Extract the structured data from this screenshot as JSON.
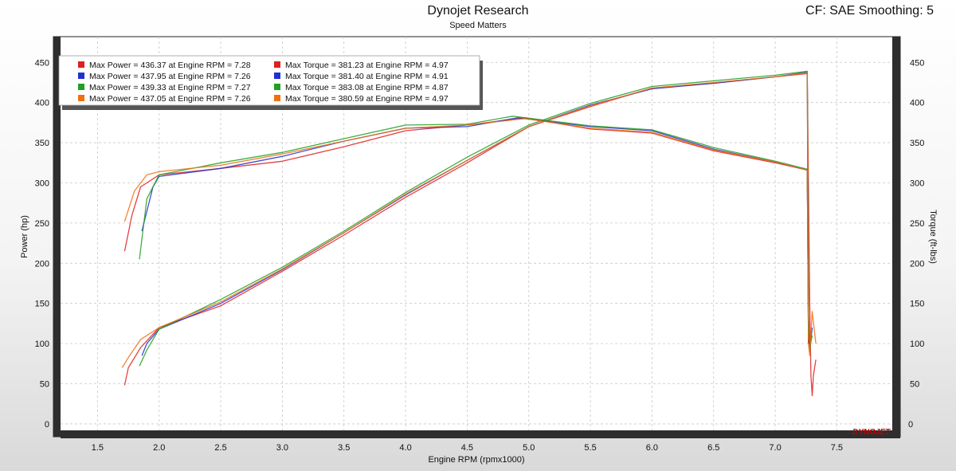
{
  "header": {
    "title": "Dynojet Research",
    "subtitle": "Speed Matters",
    "cf_label": "CF: SAE Smoothing: 5"
  },
  "logo_text": "DYNOJET",
  "chart_data": {
    "type": "line",
    "xlabel": "Engine RPM (rpmx1000)",
    "ylabel_left": "Power (hp)",
    "ylabel_right": "Torque (ft-lbs)",
    "xlim": [
      1.2,
      7.95
    ],
    "ylim": [
      -8,
      482
    ],
    "x_ticks": [
      "1.5",
      "2.0",
      "2.5",
      "3.0",
      "3.5",
      "4.0",
      "4.5",
      "5.0",
      "5.5",
      "6.0",
      "6.5",
      "7.0",
      "7.5"
    ],
    "y_ticks": [
      "0",
      "50",
      "100",
      "150",
      "200",
      "250",
      "300",
      "350",
      "400",
      "450"
    ],
    "grid": true,
    "legend_position": "top-left",
    "legend": [
      {
        "color": "#e02020",
        "power_text": "Max Power = 436.37 at Engine RPM = 7.28",
        "torque_text": "Max Torque = 381.23 at Engine RPM = 4.97"
      },
      {
        "color": "#2030d0",
        "power_text": "Max Power = 437.95 at Engine RPM = 7.26",
        "torque_text": "Max Torque = 381.40 at Engine RPM = 4.91"
      },
      {
        "color": "#20a020",
        "power_text": "Max Power = 439.33 at Engine RPM = 7.27",
        "torque_text": "Max Torque = 383.08 at Engine RPM = 4.87"
      },
      {
        "color": "#f07010",
        "power_text": "Max Power = 437.05 at Engine RPM = 7.26",
        "torque_text": "Max Torque = 380.59 at Engine RPM = 4.97"
      }
    ],
    "series": [
      {
        "kind": "power",
        "color": "#e02020",
        "x": [
          1.72,
          1.75,
          1.85,
          2.0,
          2.5,
          3.0,
          3.5,
          4.0,
          4.5,
          5.0,
          5.5,
          6.0,
          6.5,
          7.0,
          7.26,
          7.28,
          7.29,
          7.3,
          7.31,
          7.33
        ],
        "y": [
          48,
          70,
          95,
          120,
          147,
          190,
          235,
          282,
          325,
          370,
          395,
          418,
          424,
          432,
          436,
          150,
          60,
          35,
          60,
          80
        ]
      },
      {
        "kind": "power",
        "color": "#2030d0",
        "x": [
          1.86,
          1.9,
          2.0,
          2.5,
          3.0,
          3.5,
          4.0,
          4.5,
          5.0,
          5.5,
          6.0,
          6.5,
          7.0,
          7.26,
          7.27,
          7.28,
          7.3
        ],
        "y": [
          85,
          100,
          118,
          150,
          192,
          238,
          285,
          328,
          370,
          397,
          417,
          424,
          432,
          438,
          140,
          90,
          120
        ]
      },
      {
        "kind": "power",
        "color": "#20a020",
        "x": [
          1.84,
          1.9,
          2.0,
          2.5,
          3.0,
          3.5,
          4.0,
          4.5,
          5.0,
          5.5,
          6.0,
          6.5,
          7.0,
          7.26,
          7.27,
          7.28,
          7.3
        ],
        "y": [
          72,
          92,
          118,
          155,
          195,
          240,
          288,
          332,
          372,
          399,
          420,
          427,
          434,
          439,
          130,
          95,
          110
        ]
      },
      {
        "kind": "power",
        "color": "#f07010",
        "x": [
          1.7,
          1.76,
          1.85,
          2.0,
          2.5,
          3.0,
          3.5,
          4.0,
          4.5,
          5.0,
          5.5,
          6.0,
          6.5,
          7.0,
          7.26,
          7.27,
          7.28,
          7.3,
          7.33
        ],
        "y": [
          70,
          85,
          105,
          120,
          152,
          193,
          238,
          286,
          328,
          370,
          396,
          418,
          425,
          432,
          437,
          100,
          85,
          140,
          100
        ]
      },
      {
        "kind": "torque",
        "color": "#e02020",
        "x": [
          1.72,
          1.78,
          1.85,
          2.0,
          2.5,
          3.0,
          3.5,
          4.0,
          4.5,
          4.97,
          5.5,
          6.0,
          6.5,
          7.0,
          7.26,
          7.27
        ],
        "y": [
          215,
          260,
          295,
          310,
          318,
          327,
          345,
          365,
          372,
          381,
          367,
          362,
          340,
          325,
          316,
          100
        ]
      },
      {
        "kind": "torque",
        "color": "#2030d0",
        "x": [
          1.86,
          1.95,
          2.0,
          2.5,
          3.0,
          3.5,
          4.0,
          4.5,
          4.91,
          5.5,
          6.0,
          6.5,
          7.0,
          7.26,
          7.27
        ],
        "y": [
          240,
          295,
          308,
          318,
          333,
          352,
          368,
          370,
          381,
          370,
          365,
          342,
          326,
          316,
          120
        ]
      },
      {
        "kind": "torque",
        "color": "#20a020",
        "x": [
          1.84,
          1.9,
          2.0,
          2.5,
          3.0,
          3.5,
          4.0,
          4.5,
          4.87,
          5.5,
          6.0,
          6.5,
          7.0,
          7.26,
          7.27
        ],
        "y": [
          205,
          280,
          310,
          325,
          338,
          355,
          372,
          373,
          383,
          371,
          366,
          344,
          327,
          317,
          110
        ]
      },
      {
        "kind": "torque",
        "color": "#f07010",
        "x": [
          1.72,
          1.8,
          1.9,
          2.0,
          2.5,
          3.0,
          3.5,
          4.0,
          4.5,
          4.97,
          5.5,
          6.0,
          6.5,
          7.0,
          7.26,
          7.27
        ],
        "y": [
          252,
          290,
          310,
          314,
          322,
          336,
          352,
          368,
          372,
          380,
          368,
          363,
          341,
          326,
          316,
          105
        ]
      }
    ]
  }
}
